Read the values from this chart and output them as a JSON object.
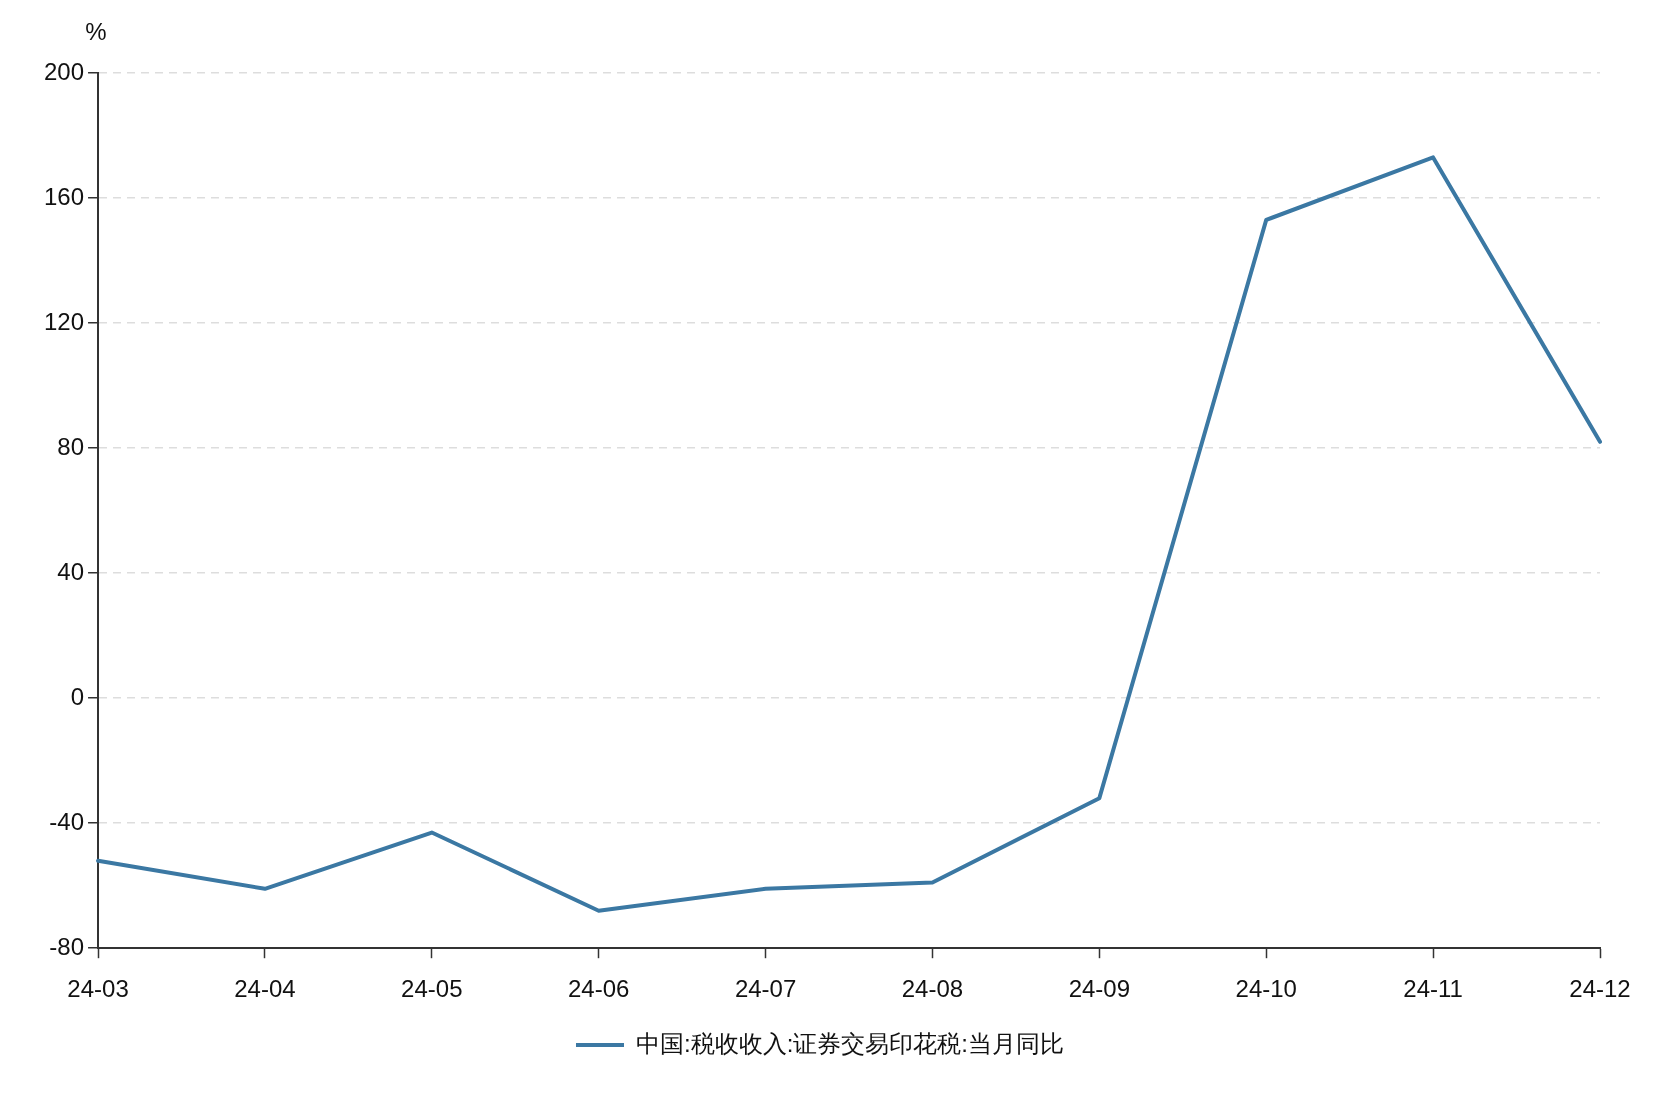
{
  "chart_data": {
    "type": "line",
    "ylabel": "%",
    "categories": [
      "24-03",
      "24-04",
      "24-05",
      "24-06",
      "24-07",
      "24-08",
      "24-09",
      "24-10",
      "24-11",
      "24-12"
    ],
    "series": [
      {
        "name": "中国:税收收入:证券交易印花税:当月同比",
        "color": "#3b78a3",
        "values": [
          -52,
          -61,
          -43,
          -68,
          -61,
          -59,
          -32,
          153,
          173,
          82
        ]
      }
    ],
    "ylim": [
      -80,
      200
    ],
    "yticks": [
      -80,
      -40,
      0,
      40,
      80,
      120,
      160,
      200
    ],
    "grid": "y",
    "legend": "bottom",
    "marker": "none",
    "line_style": "solid"
  }
}
